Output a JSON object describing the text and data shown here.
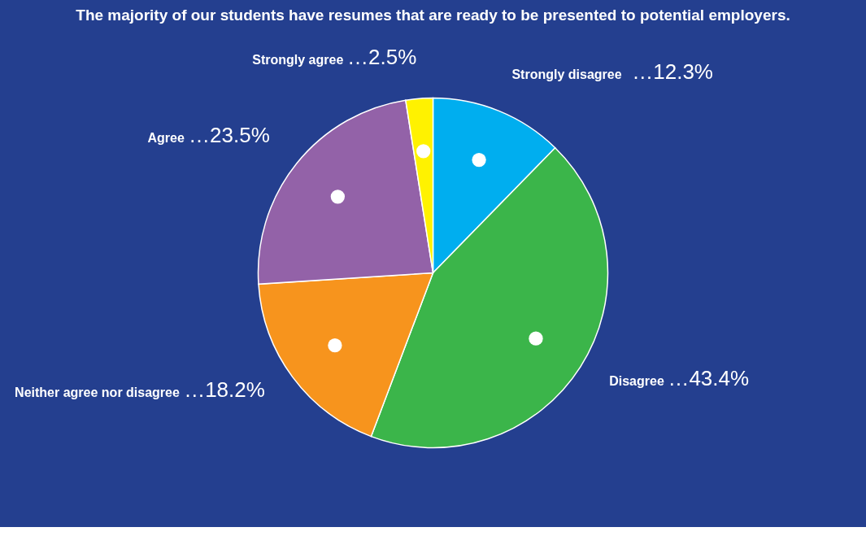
{
  "chart_data": {
    "type": "pie",
    "title": "The majority of our students have resumes that are ready to be presented to potential employers.",
    "categories": [
      "Strongly disagree",
      "Disagree",
      "Neither agree nor disagree",
      "Agree",
      "Strongly agree"
    ],
    "values": [
      12.3,
      43.4,
      18.2,
      23.5,
      2.5
    ],
    "colors": [
      "#00aeef",
      "#3bb54a",
      "#f7941d",
      "#9362a8",
      "#fff200"
    ],
    "value_labels": [
      "…12.3%",
      "…43.4%",
      "…18.2%",
      "…23.5%",
      "…2.5%"
    ],
    "legend": false
  }
}
